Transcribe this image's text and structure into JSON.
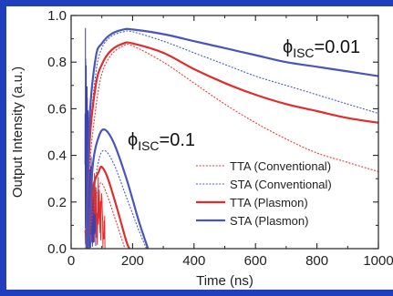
{
  "chart_data": {
    "type": "line",
    "xlabel": "Time (ns)",
    "ylabel": "Output Intensity (a.u.)",
    "xlim": [
      0,
      1000
    ],
    "ylim": [
      0.0,
      1.0
    ],
    "xticks": [
      0,
      200,
      400,
      600,
      800,
      1000
    ],
    "yticks": [
      0.0,
      0.2,
      0.4,
      0.6,
      0.8,
      1.0
    ],
    "xtick_labels": [
      "0",
      "200",
      "400",
      "600",
      "800",
      "1000"
    ],
    "ytick_labels": [
      "0.0",
      "0.2",
      "0.4",
      "0.6",
      "0.8",
      "1.0"
    ],
    "legend_position": "lower-right",
    "annotations": [
      {
        "phi": "ϕ",
        "sub": "ISC",
        "value": "=0.01"
      },
      {
        "phi": "ϕ",
        "sub": "ISC",
        "value": "=0.1"
      }
    ],
    "series": [
      {
        "name": "TTA (Conventional)",
        "color": "#e83a3a",
        "style": "dotted",
        "width": 1.1,
        "points": [
          [
            50,
            0
          ],
          [
            60,
            0.35
          ],
          [
            80,
            0.6
          ],
          [
            100,
            0.75
          ],
          [
            130,
            0.83
          ],
          [
            170,
            0.87
          ],
          [
            200,
            0.87
          ],
          [
            300,
            0.8
          ],
          [
            400,
            0.71
          ],
          [
            500,
            0.62
          ],
          [
            600,
            0.54
          ],
          [
            700,
            0.47
          ],
          [
            800,
            0.41
          ],
          [
            900,
            0.37
          ],
          [
            1000,
            0.33
          ]
        ]
      },
      {
        "name": "STA (Conventional)",
        "color": "#4a5cc0",
        "style": "dotted",
        "width": 1.1,
        "points": [
          [
            50,
            0
          ],
          [
            60,
            0.45
          ],
          [
            80,
            0.75
          ],
          [
            100,
            0.86
          ],
          [
            130,
            0.91
          ],
          [
            170,
            0.93
          ],
          [
            200,
            0.93
          ],
          [
            300,
            0.89
          ],
          [
            400,
            0.84
          ],
          [
            500,
            0.79
          ],
          [
            600,
            0.74
          ],
          [
            700,
            0.7
          ],
          [
            800,
            0.66
          ],
          [
            900,
            0.62
          ],
          [
            1000,
            0.58
          ]
        ]
      },
      {
        "name": "TTA (Plasmon)",
        "color": "#e22b2b",
        "style": "solid",
        "width": 2.2,
        "points": [
          [
            50,
            0
          ],
          [
            60,
            0.45
          ],
          [
            80,
            0.7
          ],
          [
            100,
            0.79
          ],
          [
            130,
            0.85
          ],
          [
            170,
            0.88
          ],
          [
            200,
            0.88
          ],
          [
            300,
            0.84
          ],
          [
            400,
            0.77
          ],
          [
            500,
            0.71
          ],
          [
            600,
            0.66
          ],
          [
            700,
            0.62
          ],
          [
            800,
            0.59
          ],
          [
            900,
            0.56
          ],
          [
            1000,
            0.54
          ]
        ]
      },
      {
        "name": "STA (Plasmon)",
        "color": "#4a55b8",
        "style": "solid",
        "width": 2.2,
        "points": [
          [
            50,
            0
          ],
          [
            60,
            0.55
          ],
          [
            80,
            0.82
          ],
          [
            100,
            0.88
          ],
          [
            130,
            0.92
          ],
          [
            170,
            0.94
          ],
          [
            200,
            0.94
          ],
          [
            300,
            0.92
          ],
          [
            400,
            0.89
          ],
          [
            500,
            0.86
          ],
          [
            600,
            0.83
          ],
          [
            700,
            0.8
          ],
          [
            800,
            0.78
          ],
          [
            900,
            0.76
          ],
          [
            1000,
            0.74
          ]
        ]
      },
      {
        "name": "",
        "color": "#e83a3a",
        "style": "dotted",
        "width": 1.1,
        "points": [
          [
            55,
            0
          ],
          [
            70,
            0.15
          ],
          [
            90,
            0.26
          ],
          [
            100,
            0.28
          ],
          [
            120,
            0.22
          ],
          [
            150,
            0.1
          ],
          [
            175,
            0.0
          ]
        ]
      },
      {
        "name": "",
        "color": "#4a5cc0",
        "style": "dotted",
        "width": 1.1,
        "points": [
          [
            55,
            0
          ],
          [
            70,
            0.2
          ],
          [
            90,
            0.38
          ],
          [
            110,
            0.42
          ],
          [
            140,
            0.36
          ],
          [
            180,
            0.22
          ],
          [
            220,
            0.08
          ],
          [
            245,
            0.0
          ]
        ]
      },
      {
        "name": "",
        "color": "#e22b2b",
        "style": "solid",
        "width": 2.2,
        "points": [
          [
            55,
            0
          ],
          [
            70,
            0.25
          ],
          [
            90,
            0.33
          ],
          [
            100,
            0.35
          ],
          [
            120,
            0.3
          ],
          [
            150,
            0.17
          ],
          [
            180,
            0.03
          ],
          [
            190,
            0.0
          ]
        ]
      },
      {
        "name": "",
        "color": "#4a55b8",
        "style": "solid",
        "width": 2.2,
        "points": [
          [
            55,
            0
          ],
          [
            70,
            0.35
          ],
          [
            90,
            0.48
          ],
          [
            110,
            0.51
          ],
          [
            140,
            0.45
          ],
          [
            180,
            0.3
          ],
          [
            220,
            0.12
          ],
          [
            250,
            0.0
          ]
        ]
      }
    ],
    "noise": {
      "red": {
        "color": "#e22b2b",
        "x_from": 45,
        "x_to": 110,
        "y_low": 0.0,
        "y_high": 0.35
      },
      "blue": {
        "color": "#3b42b0",
        "x_from": 45,
        "x_to": 80,
        "y_low": 0.0,
        "y_high": 1.0
      }
    }
  }
}
